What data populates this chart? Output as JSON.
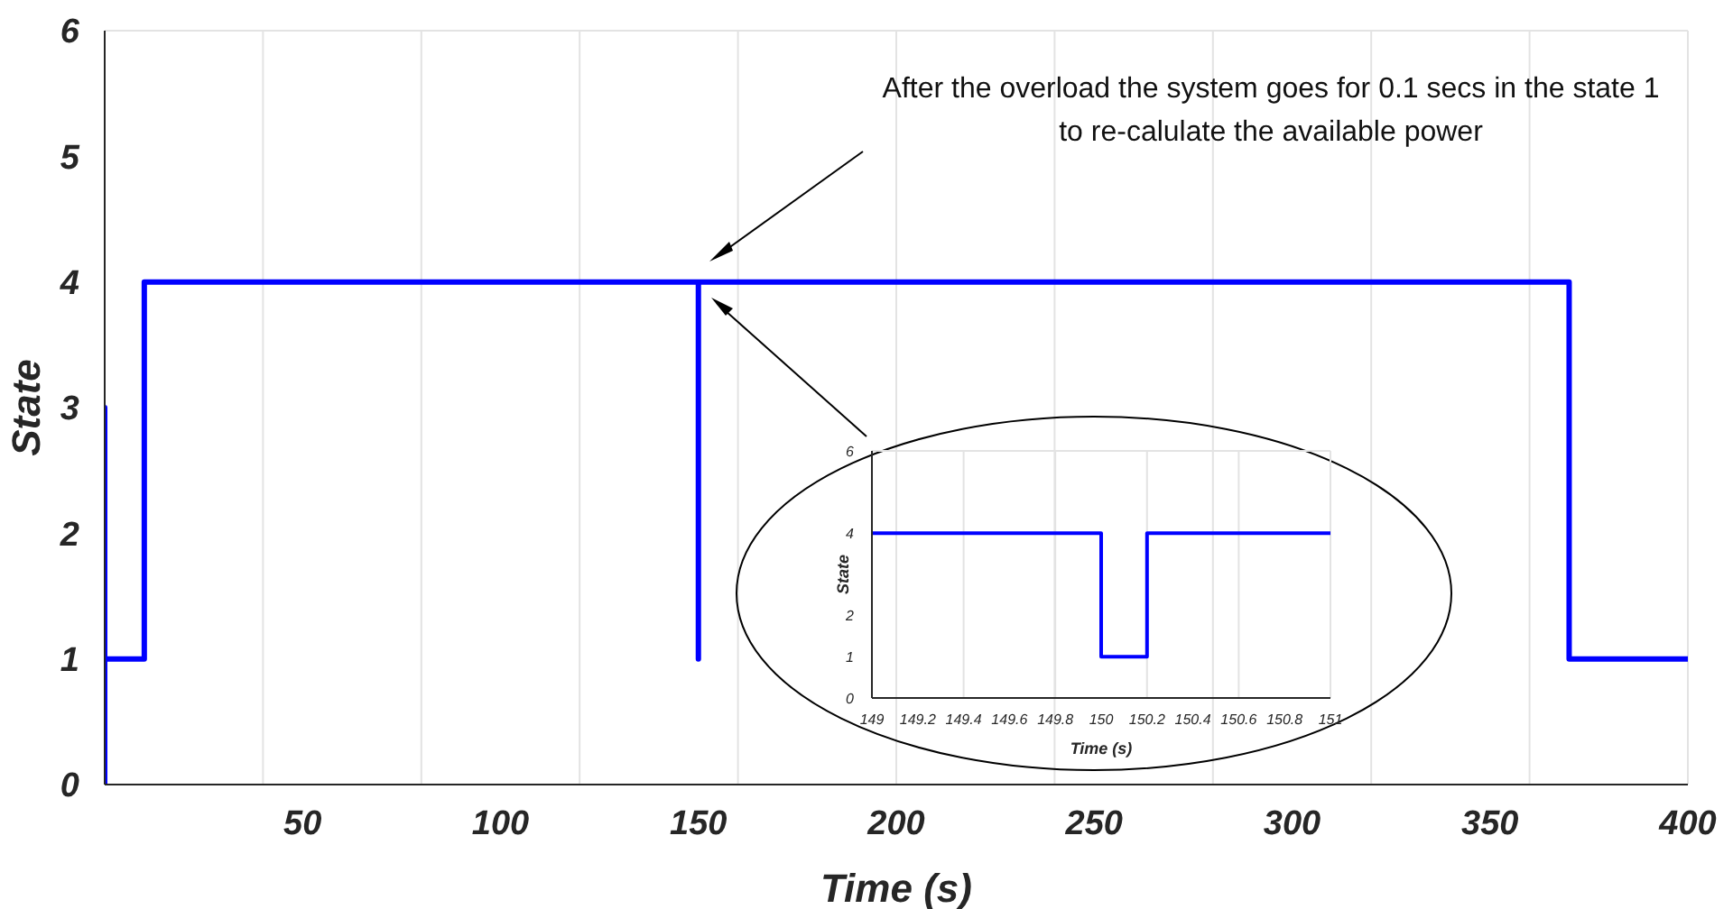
{
  "chart_data": [
    {
      "type": "line",
      "xlabel": "Time (s)",
      "ylabel": "State",
      "xlim": [
        0,
        400
      ],
      "xticks": [
        50,
        100,
        150,
        200,
        250,
        300,
        350,
        400
      ],
      "ylim": [
        0,
        6
      ],
      "yticks": [
        0,
        1,
        2,
        3,
        4,
        5,
        6
      ],
      "grid": true,
      "marker": "none",
      "line_style": "solid",
      "annotations": [
        "After the overload the system goes for 0.1 secs in the state 1 to re-calulate the available power"
      ],
      "series": [
        {
          "color": "#0000ff",
          "x": [
            0,
            0,
            0,
            10,
            10,
            150,
            150,
            150,
            370,
            370,
            400
          ],
          "values": [
            0,
            3,
            1,
            1,
            4,
            4,
            1,
            4,
            4,
            1,
            1
          ]
        }
      ]
    },
    {
      "type": "line",
      "xlabel": "Time (s)",
      "ylabel": "State",
      "xlim": [
        149,
        151
      ],
      "xticks": [
        149,
        149.2,
        149.4,
        149.6,
        149.8,
        150,
        150.2,
        150.4,
        150.6,
        150.8,
        151
      ],
      "ylim": [
        0,
        6
      ],
      "yticks": [
        0,
        1,
        2,
        4,
        6
      ],
      "grid": true,
      "marker": "none",
      "line_style": "solid",
      "series": [
        {
          "color": "#0000ff",
          "x": [
            149,
            150,
            150,
            150.2,
            150.2,
            151
          ],
          "values": [
            4,
            4,
            1,
            1,
            4,
            4
          ]
        }
      ]
    }
  ]
}
